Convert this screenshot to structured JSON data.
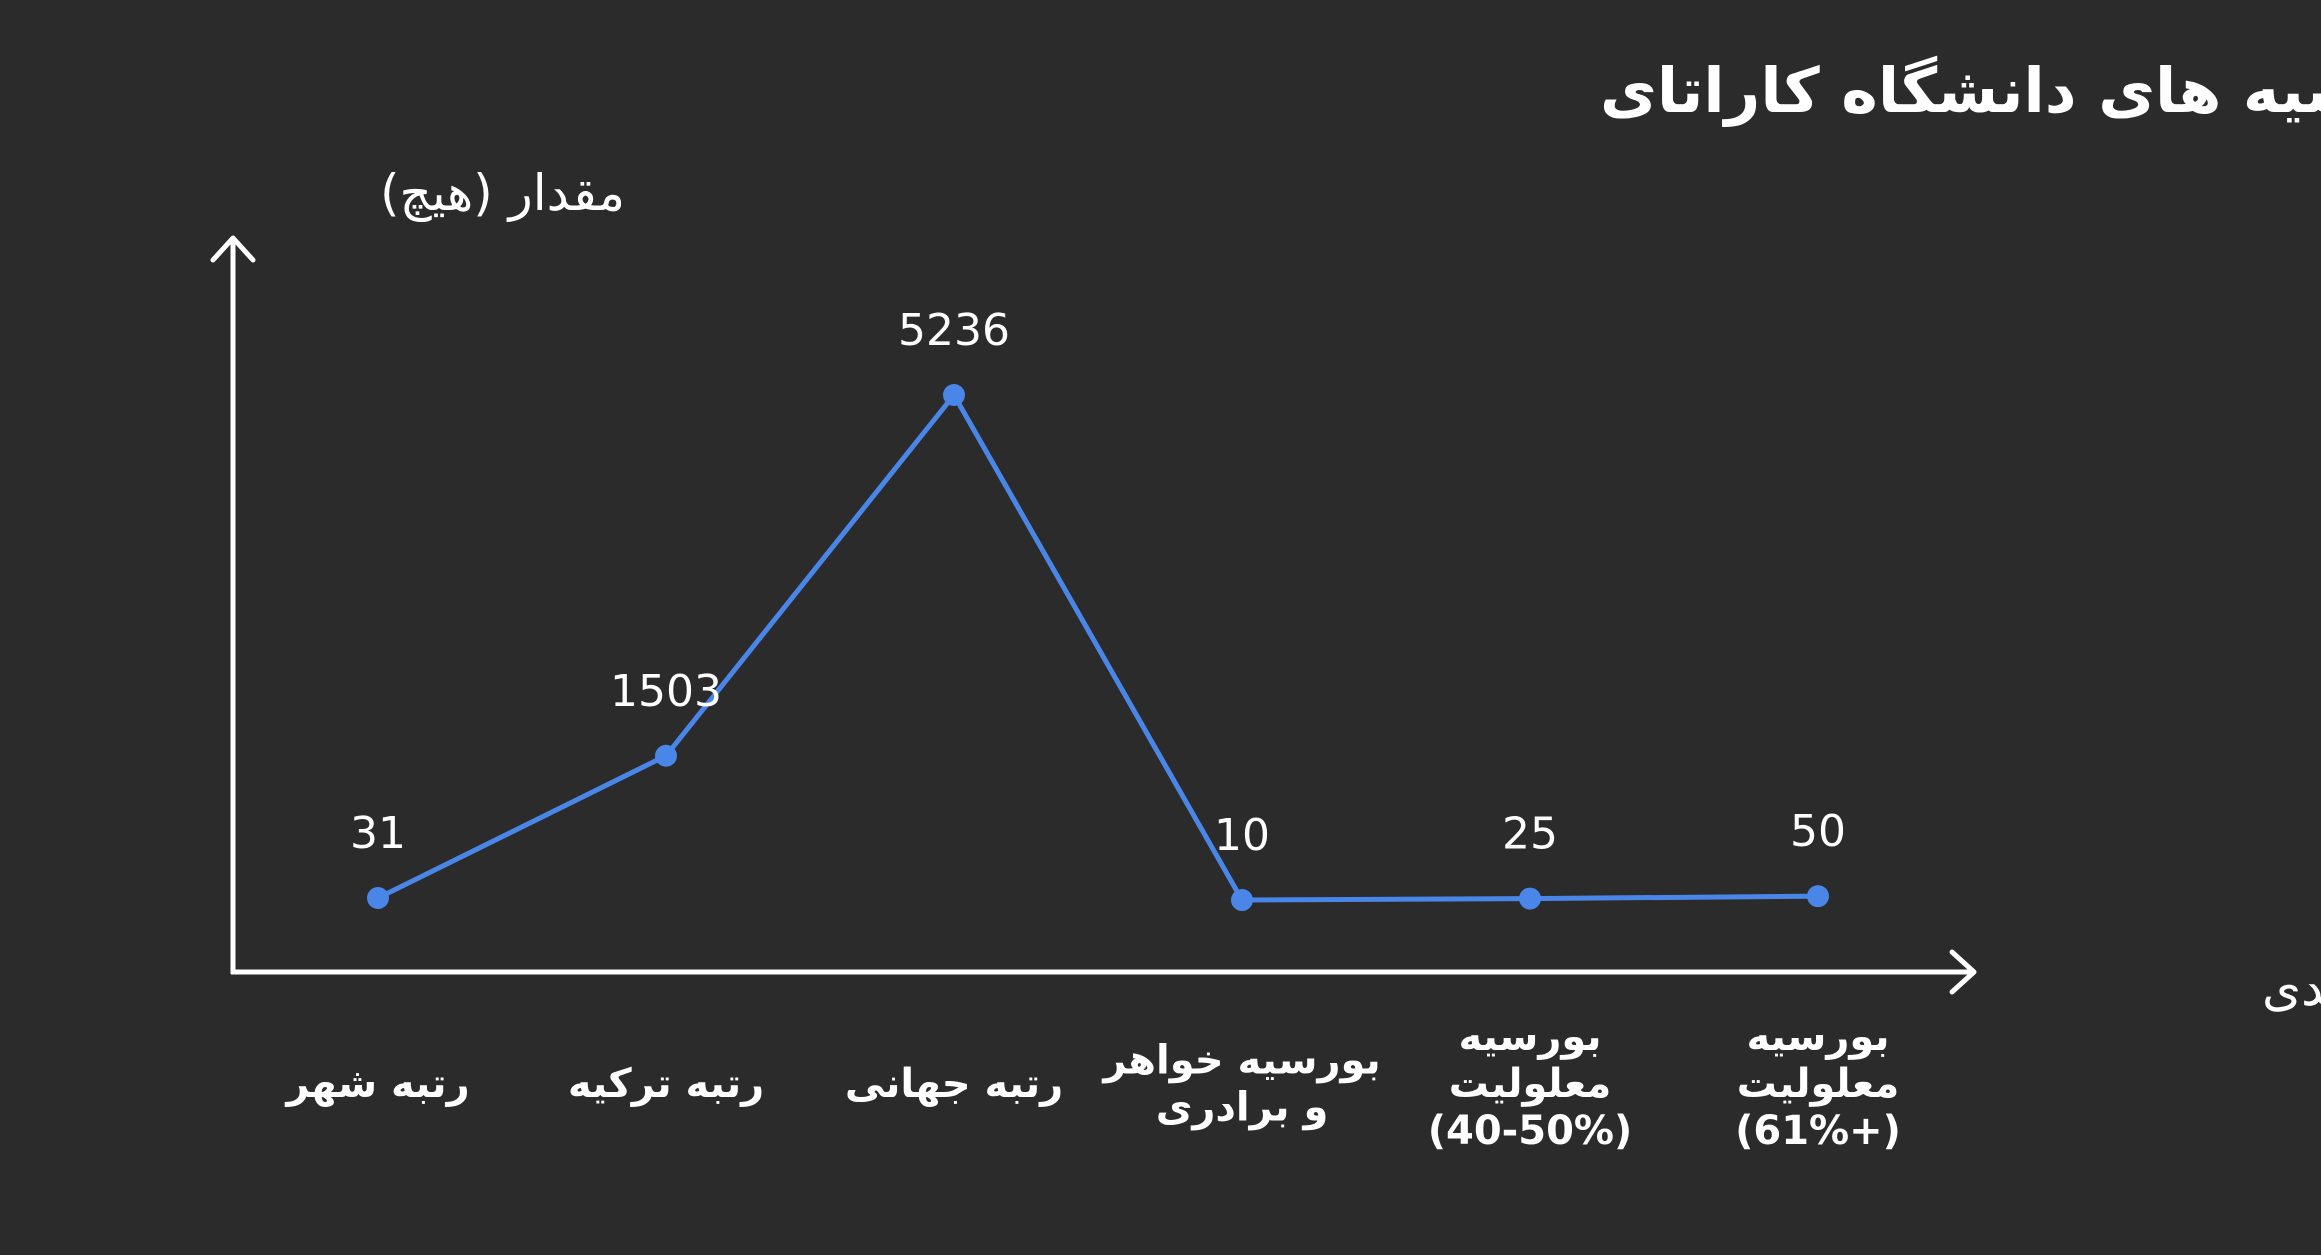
{
  "chart_data": {
    "type": "line",
    "title": "رتبه بندی و بورسیه های دانشگاه کاراتای",
    "xlabel": "دسته بندی",
    "ylabel": "مقدار (هیچ)",
    "categories": [
      [
        "رتبه شهر"
      ],
      [
        "رتبه ترکیه"
      ],
      [
        "رتبه جهانی"
      ],
      [
        "بورسیه خواهر",
        "و برادری"
      ],
      [
        "بورسیه",
        "معلولیت",
        "(40-50%)"
      ],
      [
        "بورسیه",
        "معلولیت",
        "(61%+)"
      ]
    ],
    "values": [
      31,
      1503,
      5236,
      10,
      25,
      50
    ],
    "value_labels": [
      "31",
      "1503",
      "5236",
      "10",
      "25",
      "50"
    ],
    "ylim": [
      0,
      6000
    ],
    "grid": false,
    "line_color": "#4a86e8",
    "axis_color": "#ffffff",
    "background": "#2b2b2b"
  }
}
